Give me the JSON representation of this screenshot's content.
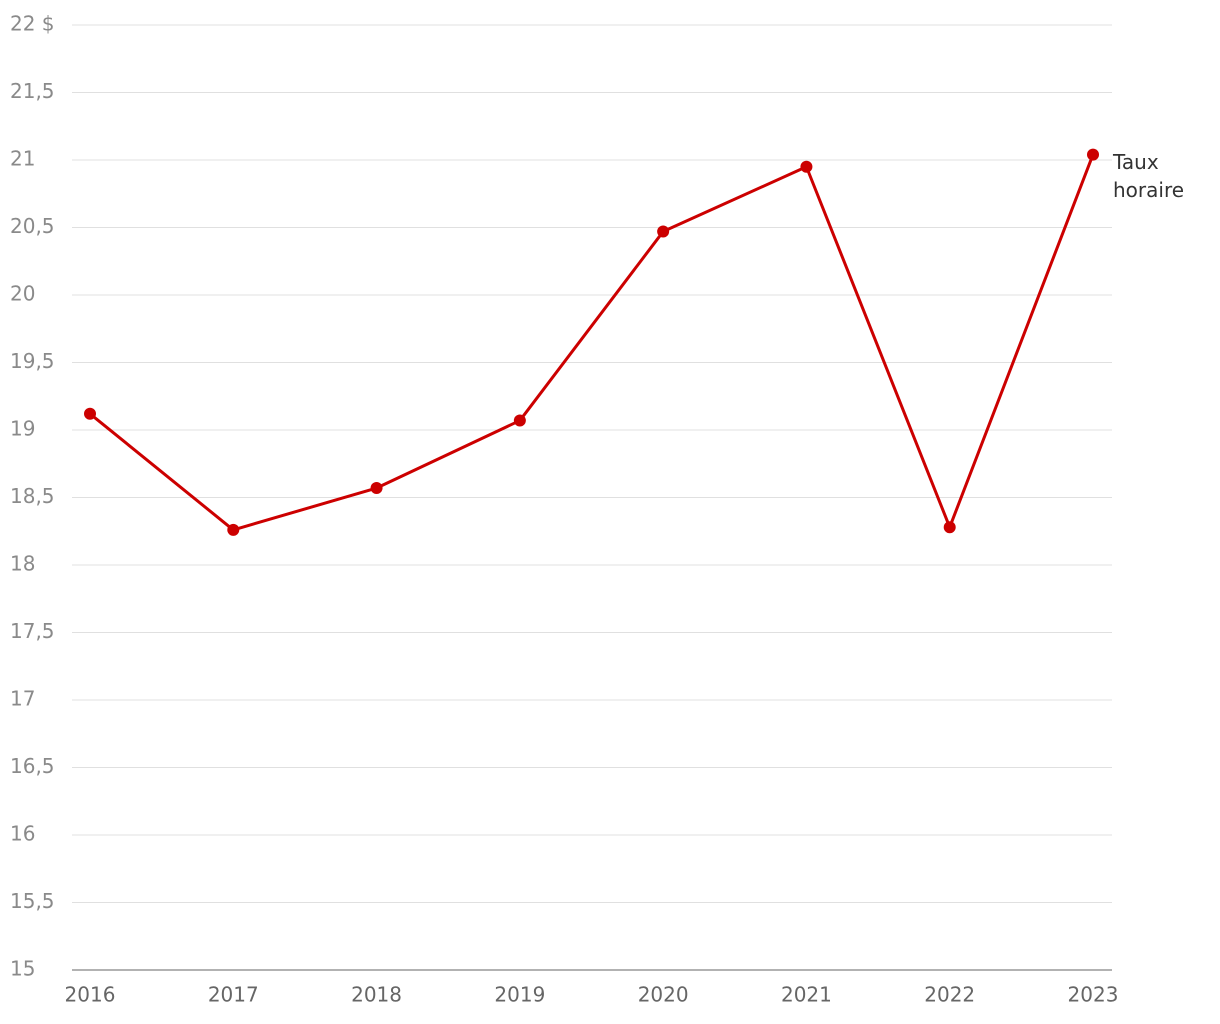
{
  "chart_data": {
    "type": "line",
    "categories": [
      "2016",
      "2017",
      "2018",
      "2019",
      "2020",
      "2021",
      "2022",
      "2023"
    ],
    "series": [
      {
        "name": "Taux horaire",
        "color": "#cc0000",
        "values": [
          19.12,
          18.26,
          18.57,
          19.07,
          20.47,
          20.95,
          18.28,
          21.04
        ]
      }
    ],
    "ylim": [
      15,
      22
    ],
    "yticks": [
      15,
      {
        "value": 15.5,
        "label": "15,5"
      },
      16,
      {
        "value": 16.5,
        "label": "16,5"
      },
      17,
      {
        "value": 17.5,
        "label": "17,5"
      },
      18,
      {
        "value": 18.5,
        "label": "18,5"
      },
      19,
      {
        "value": 19.5,
        "label": "19,5"
      },
      20,
      {
        "value": 20.5,
        "label": "20,5"
      },
      21,
      {
        "value": 21.5,
        "label": "21,5"
      },
      {
        "value": 22,
        "label": "22 $"
      }
    ],
    "grid": true
  }
}
